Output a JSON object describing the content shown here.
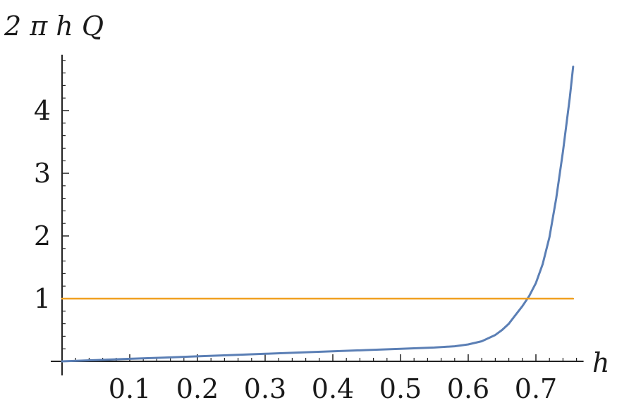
{
  "chart_data": {
    "type": "line",
    "xlabel": "h",
    "ylabel": "2 π h Q",
    "xlim": [
      0.0,
      0.76
    ],
    "ylim": [
      0.0,
      4.8
    ],
    "xticks": [
      0.1,
      0.2,
      0.3,
      0.4,
      0.5,
      0.6,
      0.7
    ],
    "xtick_labels": [
      "0.1",
      "0.2",
      "0.3",
      "0.4",
      "0.5",
      "0.6",
      "0.7"
    ],
    "yticks": [
      1,
      2,
      3,
      4
    ],
    "ytick_labels": [
      "1",
      "2",
      "3",
      "4"
    ],
    "grid": false,
    "series": [
      {
        "color": "#5b7fb5",
        "x": [
          0.0,
          0.05,
          0.1,
          0.15,
          0.2,
          0.25,
          0.3,
          0.35,
          0.4,
          0.45,
          0.5,
          0.55,
          0.58,
          0.6,
          0.62,
          0.64,
          0.65,
          0.66,
          0.67,
          0.68,
          0.69,
          0.7,
          0.71,
          0.72,
          0.73,
          0.74,
          0.75,
          0.755
        ],
        "y": [
          0.0,
          0.02,
          0.04,
          0.06,
          0.08,
          0.1,
          0.12,
          0.14,
          0.16,
          0.18,
          0.2,
          0.22,
          0.24,
          0.27,
          0.32,
          0.42,
          0.5,
          0.6,
          0.74,
          0.88,
          1.04,
          1.25,
          1.55,
          1.98,
          2.6,
          3.35,
          4.2,
          4.7
        ]
      },
      {
        "color": "#f0a020",
        "x": [
          0.0,
          0.755
        ],
        "y": [
          1.0,
          1.0
        ]
      }
    ]
  }
}
